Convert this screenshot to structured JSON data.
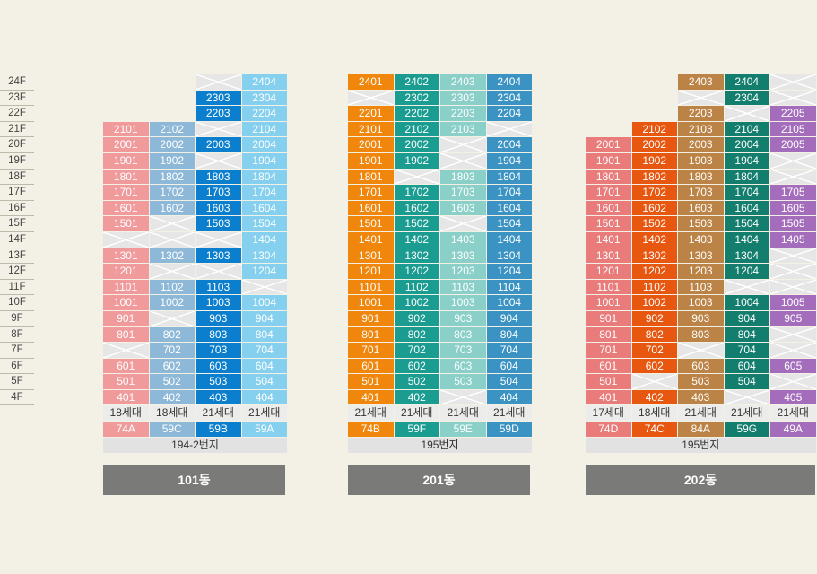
{
  "floors": [
    "24F",
    "23F",
    "22F",
    "21F",
    "20F",
    "19F",
    "18F",
    "17F",
    "16F",
    "15F",
    "14F",
    "13F",
    "12F",
    "11F",
    "10F",
    "9F",
    "8F",
    "7F",
    "6F",
    "5F",
    "4F"
  ],
  "buildings": [
    {
      "name": "101동",
      "lot": "194-2번지",
      "columns": [
        {
          "households": "18세대",
          "type": "74A",
          "color": "#f19a9b",
          "cells": [
            "",
            "",
            "",
            "2101",
            "2001",
            "1901",
            "1801",
            "1701",
            "1601",
            "1501",
            "x",
            "1301",
            "1201",
            "1101",
            "1001",
            "901",
            "801",
            "x",
            "601",
            "501",
            "401"
          ]
        },
        {
          "households": "18세대",
          "type": "59C",
          "color": "#8db8d8",
          "cells": [
            "",
            "",
            "",
            "2102",
            "2002",
            "1902",
            "1802",
            "1702",
            "1602",
            "x",
            "x",
            "1302",
            "x",
            "1102",
            "1002",
            "x",
            "802",
            "702",
            "602",
            "502",
            "402"
          ]
        },
        {
          "households": "21세대",
          "type": "59B",
          "color": "#0b7fce",
          "cells": [
            "x",
            "2303",
            "2203",
            "x",
            "2003",
            "x",
            "1803",
            "1703",
            "1603",
            "1503",
            "x",
            "1303",
            "x",
            "1103",
            "1003",
            "903",
            "803",
            "703",
            "603",
            "503",
            "403"
          ]
        },
        {
          "households": "21세대",
          "type": "59A",
          "color": "#86d0ef",
          "cells": [
            "2404",
            "2304",
            "2204",
            "2104",
            "2004",
            "1904",
            "1804",
            "1704",
            "1604",
            "1504",
            "1404",
            "1304",
            "1204",
            "x",
            "1004",
            "904",
            "804",
            "704",
            "604",
            "504",
            "404"
          ]
        }
      ]
    },
    {
      "name": "201동",
      "lot": "195번지",
      "columns": [
        {
          "households": "21세대",
          "type": "74B",
          "color": "#f0860b",
          "cells": [
            "2401",
            "x",
            "2201",
            "2101",
            "2001",
            "1901",
            "1801",
            "1701",
            "1601",
            "1501",
            "1401",
            "1301",
            "1201",
            "1101",
            "1001",
            "901",
            "801",
            "701",
            "601",
            "501",
            "401"
          ]
        },
        {
          "households": "21세대",
          "type": "59F",
          "color": "#1a9c91",
          "cells": [
            "2402",
            "2302",
            "2202",
            "2102",
            "2002",
            "1902",
            "x",
            "1702",
            "1602",
            "1502",
            "1402",
            "1302",
            "1202",
            "1102",
            "1002",
            "902",
            "802",
            "702",
            "602",
            "502",
            "402"
          ]
        },
        {
          "households": "21세대",
          "type": "59E",
          "color": "#8ad0c8",
          "cells": [
            "2403",
            "2303",
            "2203",
            "2103",
            "x",
            "x",
            "1803",
            "1703",
            "1603",
            "x",
            "1403",
            "1303",
            "1203",
            "1103",
            "1003",
            "903",
            "803",
            "703",
            "603",
            "503",
            "x"
          ]
        },
        {
          "households": "21세대",
          "type": "59D",
          "color": "#3b93c4",
          "cells": [
            "2404",
            "2304",
            "2204",
            "x",
            "2004",
            "1904",
            "1804",
            "1704",
            "1604",
            "1504",
            "1404",
            "1304",
            "1204",
            "1104",
            "1004",
            "904",
            "804",
            "704",
            "604",
            "504",
            "404"
          ]
        }
      ]
    },
    {
      "name": "202동",
      "lot": "195번지",
      "columns": [
        {
          "households": "17세대",
          "type": "74D",
          "color": "#e97b7b",
          "cells": [
            "",
            "",
            "",
            "",
            "2001",
            "1901",
            "1801",
            "1701",
            "1601",
            "1501",
            "1401",
            "1301",
            "1201",
            "1101",
            "1001",
            "901",
            "801",
            "701",
            "601",
            "501",
            "401"
          ]
        },
        {
          "households": "18세대",
          "type": "74C",
          "color": "#e8570f",
          "cells": [
            "",
            "",
            "",
            "2102",
            "2002",
            "1902",
            "1802",
            "1702",
            "1602",
            "1502",
            "1402",
            "1302",
            "1202",
            "1102",
            "1002",
            "902",
            "802",
            "702",
            "602",
            "x",
            "402"
          ]
        },
        {
          "households": "21세대",
          "type": "84A",
          "color": "#bb8346",
          "cells": [
            "2403",
            "x",
            "2203",
            "2103",
            "2003",
            "1903",
            "1803",
            "1703",
            "1603",
            "1503",
            "1403",
            "1303",
            "1203",
            "1103",
            "1003",
            "903",
            "803",
            "x",
            "603",
            "503",
            "403"
          ]
        },
        {
          "households": "21세대",
          "type": "59G",
          "color": "#137e6e",
          "cells": [
            "2404",
            "2304",
            "x",
            "2104",
            "2004",
            "1904",
            "1804",
            "1704",
            "1604",
            "1504",
            "1404",
            "1304",
            "1204",
            "x",
            "1004",
            "904",
            "804",
            "704",
            "604",
            "504",
            "x"
          ]
        },
        {
          "households": "21세대",
          "type": "49A",
          "color": "#a46dbb",
          "cells": [
            "x",
            "x",
            "2205",
            "2105",
            "2005",
            "x",
            "x",
            "1705",
            "1605",
            "1505",
            "1405",
            "x",
            "x",
            "x",
            "1005",
            "905",
            "x",
            "x",
            "605",
            "x",
            "405"
          ]
        }
      ]
    }
  ]
}
